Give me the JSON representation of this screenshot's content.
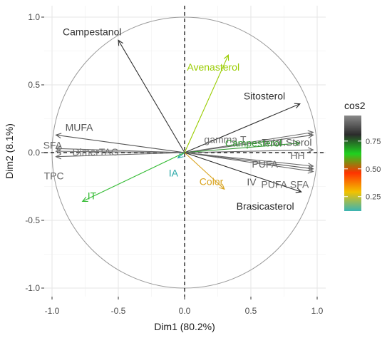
{
  "chart_data": {
    "type": "scatter",
    "subtype": "pca-variable-correlation-circle",
    "title": "",
    "xlabel": "Dim1 (80.2%)",
    "ylabel": "Dim2 (8.1%)",
    "xlim": [
      -1.0,
      1.0
    ],
    "ylim": [
      -1.0,
      1.0
    ],
    "xticks": [
      -1.0,
      -0.5,
      0.0,
      0.5,
      1.0
    ],
    "yticks": [
      -1.0,
      -0.5,
      0.0,
      0.5,
      1.0
    ],
    "xtick_labels": [
      "-1.0",
      "-0.5",
      "0.0",
      "0.5",
      "1.0"
    ],
    "ytick_labels": [
      "-1.0",
      "-0.5",
      "0.0",
      "0.5",
      "1.0"
    ],
    "grid": true,
    "reference_lines": {
      "x": 0,
      "y": 0,
      "style": "dashed"
    },
    "unit_circle": true,
    "legend": {
      "title": "cos2",
      "position": "right",
      "ticks": [
        0.25,
        0.5,
        0.75
      ],
      "tick_labels": [
        "0.25",
        "0.50",
        "0.75"
      ],
      "range": [
        0.12,
        0.98
      ],
      "colors": [
        "#3ab4b4",
        "#f2c200",
        "#ff3300",
        "#1fd11f",
        "#2b2b2b",
        "#8a8a8a"
      ]
    },
    "variables": [
      {
        "name": "Campestanol",
        "x": -0.5,
        "y": 0.83,
        "color": "#333333"
      },
      {
        "name": "Avenasterol",
        "x": 0.33,
        "y": 0.72,
        "color": "#99cc00"
      },
      {
        "name": "Sitosterol",
        "x": 0.87,
        "y": 0.36,
        "color": "#2d2d2d"
      },
      {
        "name": "gamma.T",
        "x": 0.97,
        "y": 0.15,
        "color": "#707070"
      },
      {
        "name": "Total.Sterol",
        "x": 0.97,
        "y": 0.13,
        "color": "#5a5a5a"
      },
      {
        "name": "Campesterol",
        "x": 0.87,
        "y": 0.07,
        "color": "#339933"
      },
      {
        "name": "HH",
        "x": 0.97,
        "y": 0.02,
        "color": "#6a6a6a"
      },
      {
        "name": "PUFA",
        "x": 0.97,
        "y": -0.1,
        "color": "#6a6a6a"
      },
      {
        "name": "IV",
        "x": 0.97,
        "y": -0.12,
        "color": "#5a5a5a"
      },
      {
        "name": "PUFA.SFA",
        "x": 0.97,
        "y": -0.14,
        "color": "#6a6a6a"
      },
      {
        "name": "Brasicasterol",
        "x": 0.88,
        "y": -0.29,
        "color": "#262626"
      },
      {
        "name": "MUFA",
        "x": -0.97,
        "y": 0.13,
        "color": "#555555"
      },
      {
        "name": "SFA",
        "x": -0.97,
        "y": 0.03,
        "color": "#666666"
      },
      {
        "name": "DimerTAG",
        "x": -0.97,
        "y": 0.01,
        "color": "#737373"
      },
      {
        "name": "TPC",
        "x": -0.97,
        "y": -0.03,
        "color": "#666666"
      },
      {
        "name": "IA",
        "x": -0.05,
        "y": -0.04,
        "color": "#2aa8a8"
      },
      {
        "name": "IT",
        "x": -0.77,
        "y": -0.36,
        "color": "#33bb33"
      },
      {
        "name": "Color",
        "x": 0.3,
        "y": -0.27,
        "color": "#d9a420"
      }
    ]
  }
}
